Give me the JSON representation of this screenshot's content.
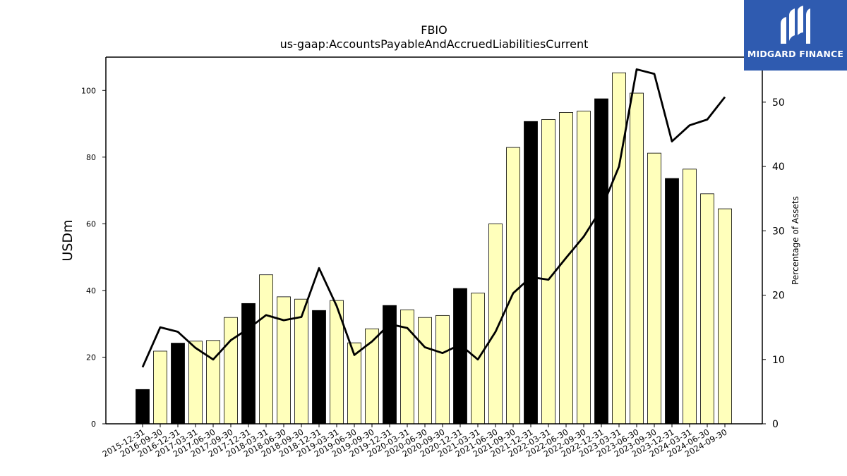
{
  "chart_data": {
    "type": "bar",
    "title": "FBIO",
    "subtitle": "us-gaap:AccountsPayableAndAccruedLiabilitiesCurrent",
    "ylabel": "USDm",
    "y2label": "Percentage of Assets",
    "ylim": [
      0,
      110
    ],
    "y2lim": [
      0,
      57
    ],
    "yticks": [
      "0",
      "20",
      "40",
      "60",
      "80",
      "100"
    ],
    "y2ticks": [
      "0",
      "10",
      "20",
      "30",
      "40",
      "50"
    ],
    "grid": false,
    "categories": [
      "2015-12-31",
      "2016-09-30",
      "2016-12-31",
      "2017-03-31",
      "2017-06-30",
      "2017-09-30",
      "2017-12-31",
      "2018-03-31",
      "2018-06-30",
      "2018-09-30",
      "2018-12-31",
      "2019-03-31",
      "2019-06-30",
      "2019-09-30",
      "2019-12-31",
      "2020-03-31",
      "2020-06-30",
      "2020-09-30",
      "2020-12-31",
      "2021-03-31",
      "2021-06-30",
      "2021-09-30",
      "2021-12-31",
      "2022-03-31",
      "2022-06-30",
      "2022-09-30",
      "2022-12-31",
      "2023-03-31",
      "2023-06-30",
      "2023-09-30",
      "2023-12-31",
      "2024-03-31",
      "2024-06-30",
      "2024-09-30"
    ],
    "series": [
      {
        "kind": "bar",
        "values": [
          10.3,
          21.8,
          24.2,
          24.8,
          25.0,
          31.9,
          36.1,
          44.7,
          38.1,
          37.4,
          34.0,
          37.0,
          24.3,
          28.5,
          35.5,
          34.2,
          31.9,
          32.5,
          40.6,
          39.2,
          60.0,
          82.9,
          90.7,
          91.3,
          93.4,
          93.8,
          97.5,
          105.3,
          99.2,
          81.2,
          73.6,
          76.4,
          69.0,
          64.5
        ],
        "highlight": [
          true,
          false,
          true,
          false,
          false,
          false,
          true,
          false,
          false,
          false,
          true,
          false,
          false,
          false,
          true,
          false,
          false,
          false,
          true,
          false,
          false,
          false,
          true,
          false,
          false,
          false,
          true,
          false,
          false,
          false,
          true,
          false,
          false,
          false
        ],
        "highlight_color": "#000000",
        "color": "#ffffbb"
      },
      {
        "kind": "line",
        "axis": "right",
        "values": [
          8.8,
          15.0,
          14.3,
          11.8,
          10.0,
          13.0,
          14.8,
          16.9,
          16.1,
          16.6,
          24.2,
          18.3,
          10.7,
          12.8,
          15.5,
          14.9,
          11.9,
          11.0,
          12.3,
          10.0,
          14.3,
          20.3,
          22.8,
          22.4,
          25.8,
          29.1,
          33.4,
          40.0,
          55.1,
          54.4,
          43.9,
          46.4,
          47.3,
          50.8
        ],
        "color": "#000000"
      }
    ]
  },
  "logo": {
    "text": "MIDGARD FINANCE"
  }
}
